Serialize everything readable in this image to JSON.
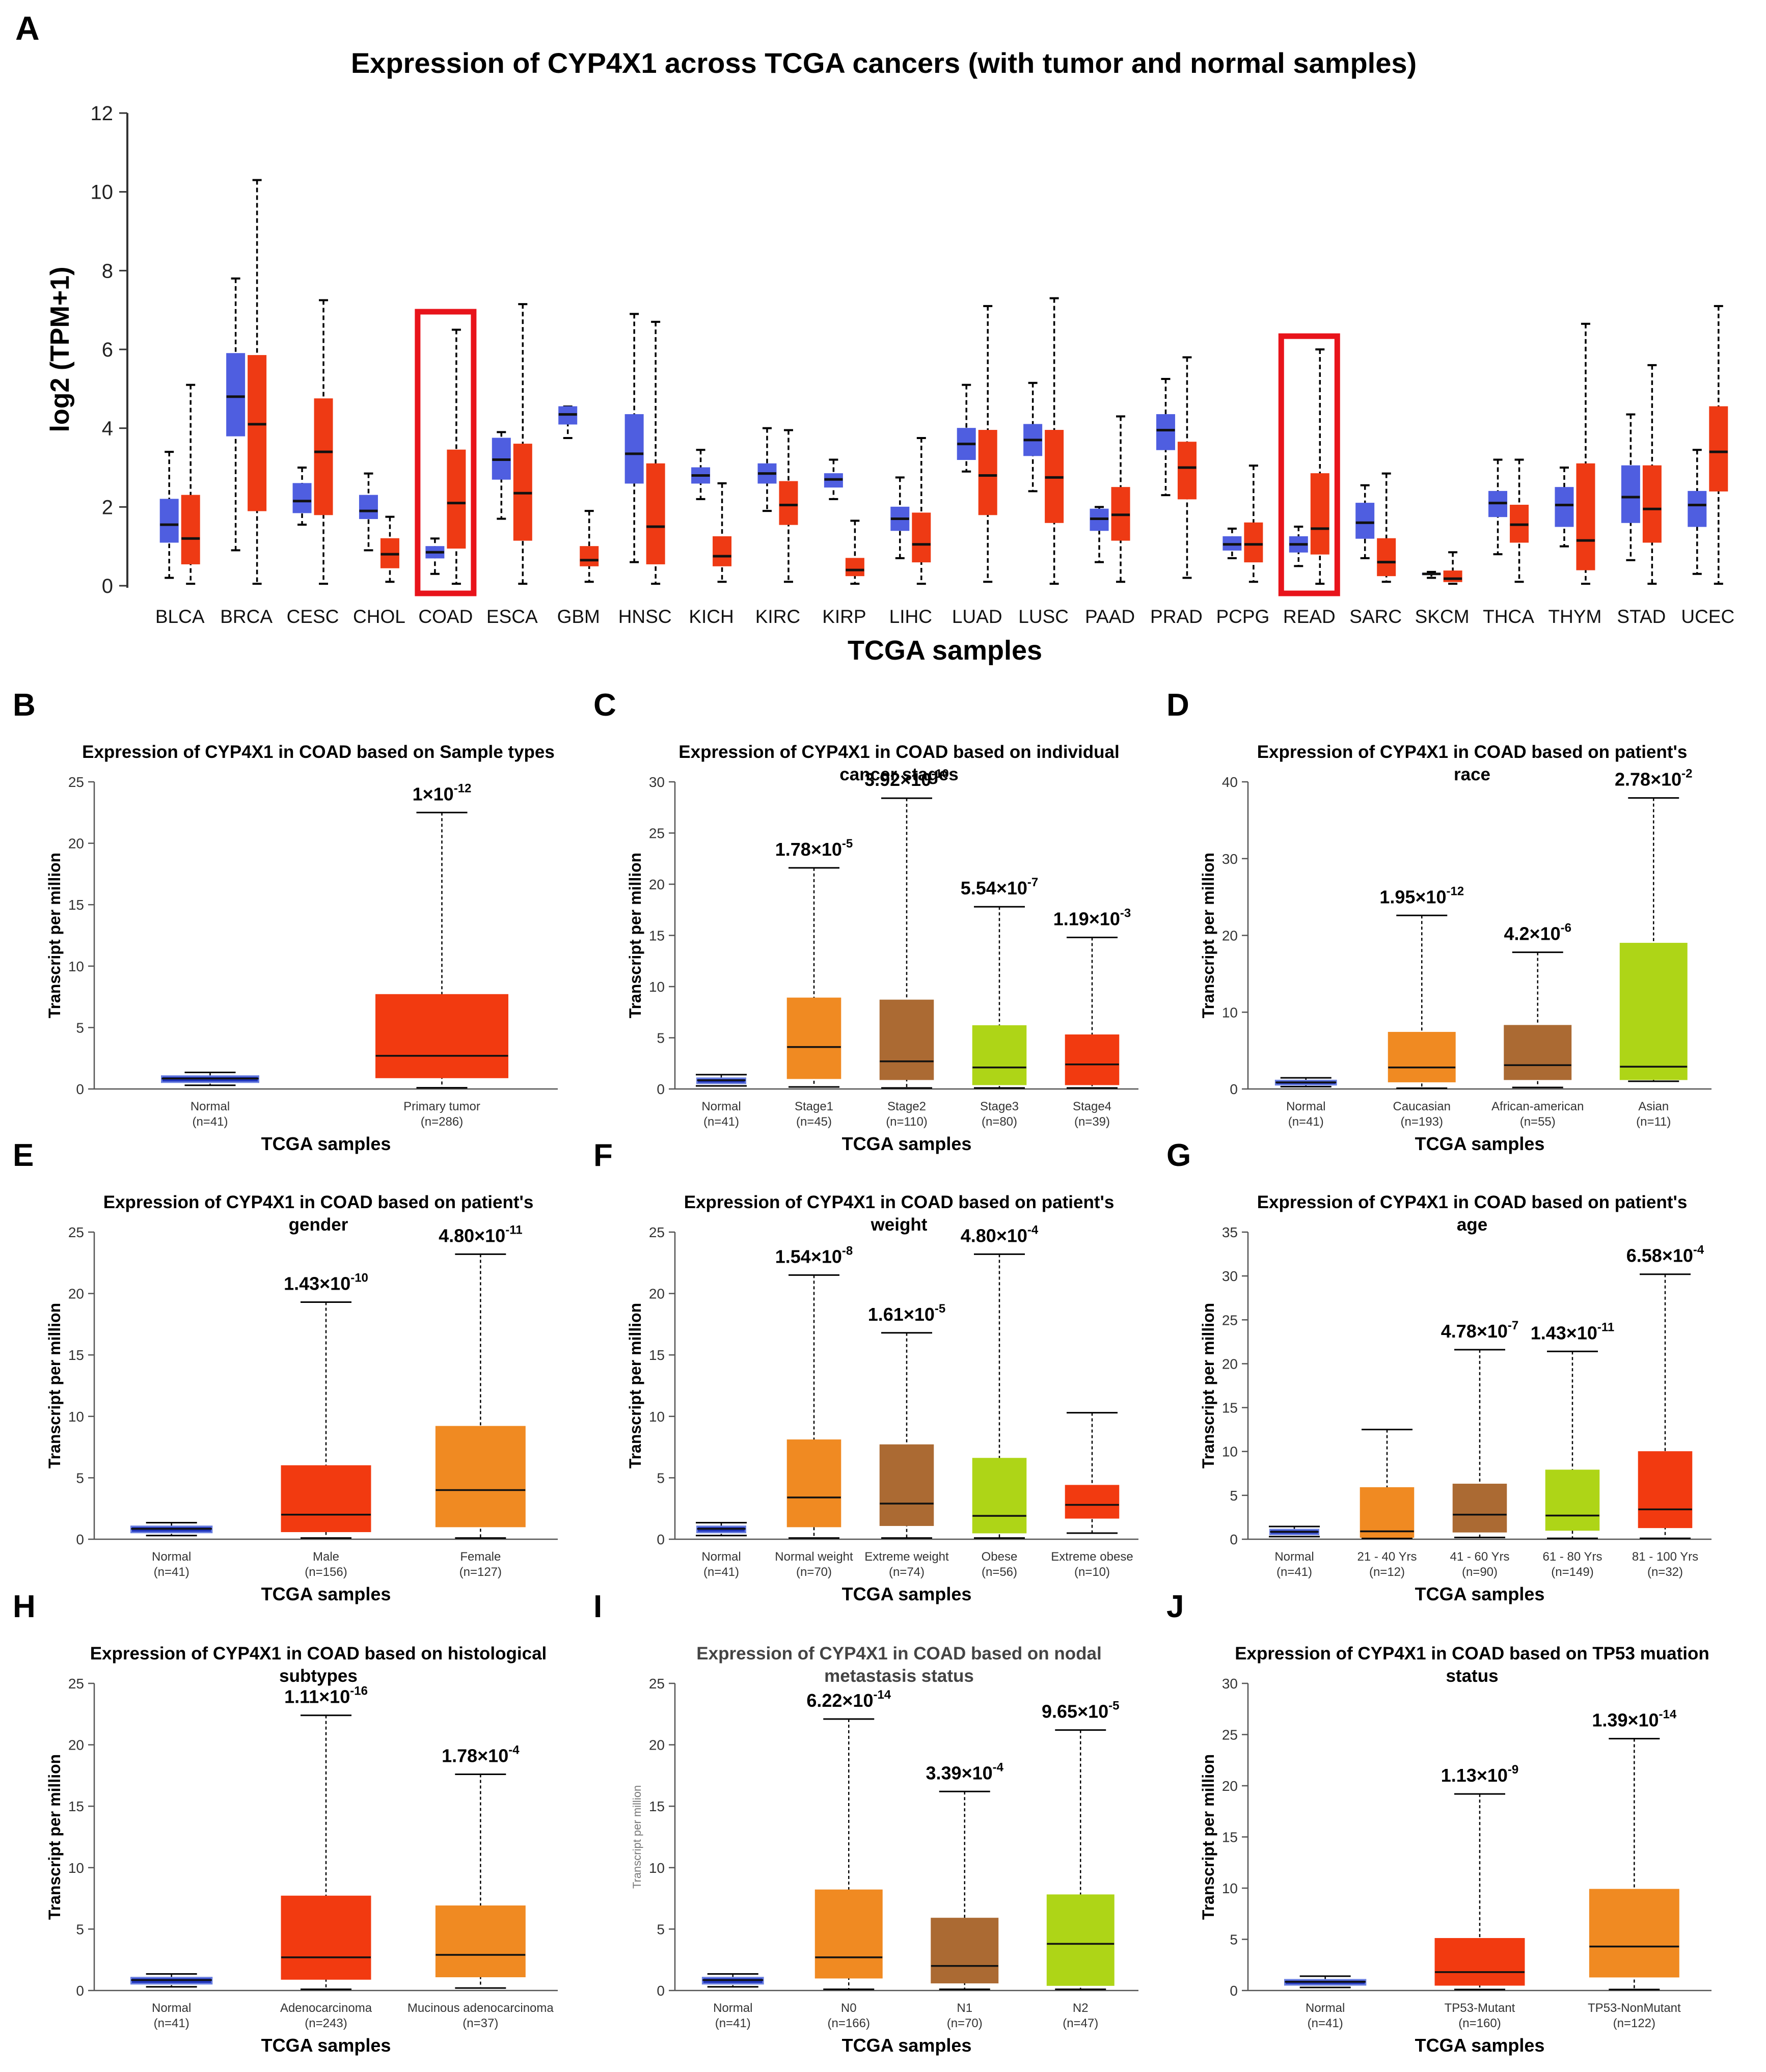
{
  "chart_data": [
    {
      "panel": "A",
      "type": "boxplot",
      "title": "Expression of CYP4X1 across TCGA cancers (with tumor and normal samples)",
      "xlabel": "TCGA samples",
      "ylabel": "log2 (TPM+1)",
      "ylim": [
        0,
        12
      ],
      "yticks": [
        "0",
        "2",
        "4",
        "6",
        "8",
        "10",
        "12"
      ],
      "colors": {
        "normal": "#4f5ee0",
        "tumor": "#ee3a14",
        "highlight": "#e8141b"
      },
      "highlighted": [
        "COAD",
        "READ"
      ],
      "categories": [
        "BLCA",
        "BRCA",
        "CESC",
        "CHOL",
        "COAD",
        "ESCA",
        "GBM",
        "HNSC",
        "KICH",
        "KIRC",
        "KIRP",
        "LIHC",
        "LUAD",
        "LUSC",
        "PAAD",
        "PRAD",
        "PCPG",
        "READ",
        "SARC",
        "SKCM",
        "THCA",
        "THYM",
        "STAD",
        "UCEC"
      ],
      "normal": [
        [
          0.2,
          1.1,
          1.55,
          2.2,
          3.4
        ],
        [
          0.9,
          3.8,
          4.8,
          5.9,
          7.8
        ],
        [
          1.55,
          1.85,
          2.15,
          2.6,
          3.0
        ],
        [
          0.9,
          1.7,
          1.9,
          2.3,
          2.85
        ],
        [
          0.3,
          0.7,
          0.85,
          1.0,
          1.2
        ],
        [
          1.7,
          2.7,
          3.2,
          3.75,
          3.9
        ],
        [
          3.75,
          4.1,
          4.35,
          4.55,
          4.55
        ],
        [
          0.6,
          2.6,
          3.35,
          4.35,
          6.9
        ],
        [
          2.2,
          2.6,
          2.8,
          3.0,
          3.45
        ],
        [
          1.9,
          2.6,
          2.85,
          3.1,
          4.0
        ],
        [
          2.2,
          2.5,
          2.7,
          2.85,
          3.2
        ],
        [
          0.7,
          1.4,
          1.7,
          2.0,
          2.75
        ],
        [
          2.9,
          3.2,
          3.6,
          4.0,
          5.1
        ],
        [
          2.4,
          3.3,
          3.7,
          4.1,
          5.15
        ],
        [
          0.6,
          1.4,
          1.7,
          1.95,
          2.0
        ],
        [
          2.3,
          3.45,
          3.95,
          4.35,
          5.25
        ],
        [
          0.7,
          0.9,
          1.05,
          1.25,
          1.45
        ],
        [
          0.5,
          0.85,
          1.05,
          1.25,
          1.5
        ],
        [
          0.7,
          1.2,
          1.6,
          2.1,
          2.55
        ],
        [
          0.2,
          0.28,
          0.3,
          0.32,
          0.35
        ],
        [
          0.8,
          1.75,
          2.1,
          2.4,
          3.2
        ],
        [
          1.0,
          1.5,
          2.05,
          2.5,
          3.0
        ],
        [
          0.65,
          1.6,
          2.25,
          3.05,
          4.35
        ],
        [
          0.3,
          1.5,
          2.05,
          2.4,
          3.45
        ]
      ],
      "tumor": [
        [
          0.05,
          0.55,
          1.2,
          2.3,
          5.1
        ],
        [
          0.05,
          1.9,
          4.1,
          5.85,
          10.3
        ],
        [
          0.05,
          1.8,
          3.4,
          4.75,
          7.25
        ],
        [
          0.1,
          0.45,
          0.8,
          1.2,
          1.75
        ],
        [
          0.05,
          0.95,
          2.1,
          3.45,
          6.5
        ],
        [
          0.05,
          1.15,
          2.35,
          3.6,
          7.15
        ],
        [
          0.1,
          0.5,
          0.65,
          1.0,
          1.9
        ],
        [
          0.05,
          0.55,
          1.5,
          3.1,
          6.7
        ],
        [
          0.1,
          0.5,
          0.75,
          1.25,
          2.6
        ],
        [
          0.1,
          1.55,
          2.05,
          2.65,
          3.95
        ],
        [
          0.05,
          0.25,
          0.4,
          0.7,
          1.65
        ],
        [
          0.05,
          0.6,
          1.05,
          1.85,
          3.75
        ],
        [
          0.1,
          1.8,
          2.8,
          3.95,
          7.1
        ],
        [
          0.05,
          1.6,
          2.75,
          3.95,
          7.3
        ],
        [
          0.1,
          1.15,
          1.8,
          2.5,
          4.3
        ],
        [
          0.2,
          2.2,
          3.0,
          3.65,
          5.8
        ],
        [
          0.1,
          0.6,
          1.05,
          1.6,
          3.05
        ],
        [
          0.05,
          0.8,
          1.45,
          2.85,
          6.0
        ],
        [
          0.1,
          0.25,
          0.6,
          1.2,
          2.85
        ],
        [
          0.05,
          0.1,
          0.18,
          0.38,
          0.85
        ],
        [
          0.1,
          1.1,
          1.55,
          2.05,
          3.2
        ],
        [
          0.05,
          0.4,
          1.15,
          3.1,
          6.65
        ],
        [
          0.05,
          1.1,
          1.95,
          3.05,
          5.6
        ],
        [
          0.05,
          2.4,
          3.4,
          4.55,
          7.1
        ]
      ]
    },
    {
      "panel": "B",
      "type": "boxplot",
      "title": "Expression of CYP4X1 in COAD based on Sample types",
      "xlabel": "TCGA samples",
      "ylabel": "Transcript per million",
      "ylim": [
        0,
        25
      ],
      "yticks": [
        "0",
        "5",
        "10",
        "15",
        "20",
        "25"
      ],
      "groups": [
        {
          "label": "Normal",
          "n": "(n=41)",
          "color": "#2136bd",
          "stats": [
            0.3,
            0.55,
            0.85,
            1.05,
            1.35
          ]
        },
        {
          "label": "Primary tumor",
          "n": "(n=286)",
          "color": "#f23a10",
          "stats": [
            0.1,
            0.9,
            2.7,
            7.7,
            22.5
          ],
          "p_main": "1×10",
          "p_exp": "-12"
        }
      ]
    },
    {
      "panel": "C",
      "type": "boxplot",
      "title": "Expression of CYP4X1 in COAD based on individual cancer stages",
      "xlabel": "TCGA samples",
      "ylabel": "Transcript per million",
      "ylim": [
        0,
        30
      ],
      "yticks": [
        "0",
        "5",
        "10",
        "15",
        "20",
        "25",
        "30"
      ],
      "groups": [
        {
          "label": "Normal",
          "n": "(n=41)",
          "color": "#2136bd",
          "stats": [
            0.3,
            0.55,
            0.85,
            1.05,
            1.4
          ]
        },
        {
          "label": "Stage1",
          "n": "(n=45)",
          "color": "#f08a22",
          "stats": [
            0.2,
            1.0,
            4.1,
            8.9,
            21.6
          ],
          "p_main": "1.78×10",
          "p_exp": "-5"
        },
        {
          "label": "Stage2",
          "n": "(n=110)",
          "color": "#ab6a33",
          "stats": [
            0.1,
            0.9,
            2.7,
            8.7,
            28.4
          ],
          "p_main": "3.92×10",
          "p_exp": "-10"
        },
        {
          "label": "Stage3",
          "n": "(n=80)",
          "color": "#aed517",
          "stats": [
            0.1,
            0.4,
            2.1,
            6.2,
            17.8
          ],
          "p_main": "5.54×10",
          "p_exp": "-7"
        },
        {
          "label": "Stage4",
          "n": "(n=39)",
          "color": "#f23a10",
          "stats": [
            0.1,
            0.4,
            2.4,
            5.3,
            14.8
          ],
          "p_main": "1.19×10",
          "p_exp": "-3"
        }
      ]
    },
    {
      "panel": "D",
      "type": "boxplot",
      "title": "Expression of CYP4X1 in COAD based on patient's race",
      "xlabel": "TCGA samples",
      "ylabel": "Transcript per million",
      "ylim": [
        0,
        40
      ],
      "yticks": [
        "0",
        "10",
        "20",
        "30",
        "40"
      ],
      "groups": [
        {
          "label": "Normal",
          "n": "(n=41)",
          "color": "#2136bd",
          "stats": [
            0.3,
            0.55,
            0.85,
            1.1,
            1.45
          ]
        },
        {
          "label": "Caucasian",
          "n": "(n=193)",
          "color": "#f08a22",
          "stats": [
            0.1,
            0.9,
            2.8,
            7.4,
            22.6
          ],
          "p_main": "1.95×10",
          "p_exp": "-12"
        },
        {
          "label": "African-american",
          "n": "(n=55)",
          "color": "#ab6a33",
          "stats": [
            0.2,
            1.2,
            3.1,
            8.3,
            17.8
          ],
          "p_main": "4.2×10",
          "p_exp": "-6"
        },
        {
          "label": "Asian",
          "n": "(n=11)",
          "color": "#aed517",
          "stats": [
            1.0,
            1.2,
            2.9,
            19.0,
            37.9
          ],
          "p_main": "2.78×10",
          "p_exp": "-2"
        }
      ]
    },
    {
      "panel": "E",
      "type": "boxplot",
      "title": "Expression of CYP4X1 in COAD based on patient's gender",
      "xlabel": "TCGA samples",
      "ylabel": "Transcript per million",
      "ylim": [
        0,
        25
      ],
      "yticks": [
        "0",
        "5",
        "10",
        "15",
        "20",
        "25"
      ],
      "groups": [
        {
          "label": "Normal",
          "n": "(n=41)",
          "color": "#2136bd",
          "stats": [
            0.3,
            0.55,
            0.85,
            1.05,
            1.35
          ]
        },
        {
          "label": "Male",
          "n": "(n=156)",
          "color": "#f23a10",
          "stats": [
            0.1,
            0.6,
            2.0,
            6.0,
            19.3
          ],
          "p_main": "1.43×10",
          "p_exp": "-10"
        },
        {
          "label": "Female",
          "n": "(n=127)",
          "color": "#f08a22",
          "stats": [
            0.1,
            1.0,
            4.0,
            9.2,
            23.2
          ],
          "p_main": "4.80×10",
          "p_exp": "-11"
        }
      ]
    },
    {
      "panel": "F",
      "type": "boxplot",
      "title": "Expression of CYP4X1 in COAD based on patient's weight",
      "xlabel": "TCGA samples",
      "ylabel": "Transcript per million",
      "ylim": [
        0,
        25
      ],
      "yticks": [
        "0",
        "5",
        "10",
        "15",
        "20",
        "25"
      ],
      "groups": [
        {
          "label": "Normal",
          "n": "(n=41)",
          "color": "#2136bd",
          "stats": [
            0.3,
            0.55,
            0.85,
            1.05,
            1.35
          ]
        },
        {
          "label": "Normal weight",
          "n": "(n=70)",
          "color": "#f08a22",
          "stats": [
            0.1,
            1.0,
            3.4,
            8.1,
            21.5
          ],
          "p_main": "1.54×10",
          "p_exp": "-8"
        },
        {
          "label": "Extreme weight",
          "n": "(n=74)",
          "color": "#ab6a33",
          "stats": [
            0.1,
            1.1,
            2.9,
            7.7,
            16.8
          ],
          "p_main": "1.61×10",
          "p_exp": "-5"
        },
        {
          "label": "Obese",
          "n": "(n=56)",
          "color": "#aed517",
          "stats": [
            0.1,
            0.5,
            1.9,
            6.6,
            23.2
          ],
          "p_main": "4.80×10",
          "p_exp": "-4"
        },
        {
          "label": "Extreme obese",
          "n": "(n=10)",
          "color": "#f23a10",
          "stats": [
            0.5,
            1.7,
            2.8,
            4.4,
            10.3
          ]
        }
      ]
    },
    {
      "panel": "G",
      "type": "boxplot",
      "title": "Expression of CYP4X1 in COAD based on patient's age",
      "xlabel": "TCGA samples",
      "ylabel": "Transcript per million",
      "ylim": [
        0,
        35
      ],
      "yticks": [
        "0",
        "5",
        "10",
        "15",
        "20",
        "25",
        "30",
        "35"
      ],
      "groups": [
        {
          "label": "Normal",
          "n": "(n=41)",
          "color": "#2136bd",
          "stats": [
            0.3,
            0.55,
            0.85,
            1.1,
            1.45
          ]
        },
        {
          "label": "21 - 40 Yrs",
          "n": "(n=12)",
          "color": "#f08a22",
          "stats": [
            0.1,
            0.2,
            0.9,
            5.9,
            12.5
          ]
        },
        {
          "label": "41 - 60 Yrs",
          "n": "(n=90)",
          "color": "#ab6a33",
          "stats": [
            0.2,
            0.8,
            2.8,
            6.3,
            21.6
          ],
          "p_main": "4.78×10",
          "p_exp": "-7"
        },
        {
          "label": "61 - 80 Yrs",
          "n": "(n=149)",
          "color": "#aed517",
          "stats": [
            0.1,
            1.0,
            2.7,
            7.9,
            21.4
          ],
          "p_main": "1.43×10",
          "p_exp": "-11"
        },
        {
          "label": "81 - 100 Yrs",
          "n": "(n=32)",
          "color": "#f23a10",
          "stats": [
            0.1,
            1.3,
            3.4,
            10.0,
            30.2
          ],
          "p_main": "6.58×10",
          "p_exp": "-4"
        }
      ]
    },
    {
      "panel": "H",
      "type": "boxplot",
      "title": "Expression of CYP4X1 in COAD based on histological subtypes",
      "xlabel": "TCGA samples",
      "ylabel": "Transcript per million",
      "ylim": [
        0,
        25
      ],
      "yticks": [
        "0",
        "5",
        "10",
        "15",
        "20",
        "25"
      ],
      "groups": [
        {
          "label": "Normal",
          "n": "(n=41)",
          "color": "#2136bd",
          "stats": [
            0.3,
            0.55,
            0.85,
            1.05,
            1.35
          ]
        },
        {
          "label": "Adenocarcinoma",
          "n": "(n=243)",
          "color": "#f23a10",
          "stats": [
            0.1,
            0.9,
            2.7,
            7.7,
            22.4
          ],
          "p_main": "1.11×10",
          "p_exp": "-16"
        },
        {
          "label": "Mucinous adenocarcinoma",
          "n": "(n=37)",
          "color": "#f08a22",
          "stats": [
            0.2,
            1.1,
            2.9,
            6.9,
            17.6
          ],
          "p_main": "1.78×10",
          "p_exp": "-4"
        }
      ]
    },
    {
      "panel": "I",
      "type": "boxplot",
      "title": "Expression of CYP4X1 in COAD based on nodal metastasis status",
      "xlabel": "TCGA samples",
      "ylabel": "Transcript per million",
      "ylim": [
        0,
        25
      ],
      "yticks": [
        "0",
        "5",
        "10",
        "15",
        "20",
        "25"
      ],
      "groups": [
        {
          "label": "Normal",
          "n": "(n=41)",
          "color": "#2136bd",
          "stats": [
            0.3,
            0.55,
            0.85,
            1.05,
            1.35
          ]
        },
        {
          "label": "N0",
          "n": "(n=166)",
          "color": "#f08a22",
          "stats": [
            0.1,
            1.0,
            2.7,
            8.2,
            22.1
          ],
          "p_main": "6.22×10",
          "p_exp": "-14"
        },
        {
          "label": "N1",
          "n": "(n=70)",
          "color": "#ab6a33",
          "stats": [
            0.1,
            0.6,
            2.0,
            5.9,
            16.2
          ],
          "p_main": "3.39×10",
          "p_exp": "-4"
        },
        {
          "label": "N2",
          "n": "(n=47)",
          "color": "#aed517",
          "stats": [
            0.1,
            0.4,
            3.8,
            7.8,
            21.2
          ],
          "p_main": "9.65×10",
          "p_exp": "-5"
        }
      ]
    },
    {
      "panel": "J",
      "type": "boxplot",
      "title": "Expression of CYP4X1 in COAD based on TP53 muation status",
      "xlabel": "TCGA samples",
      "ylabel": "Transcript per million",
      "ylim": [
        0,
        30
      ],
      "yticks": [
        "0",
        "5",
        "10",
        "15",
        "20",
        "25",
        "30"
      ],
      "groups": [
        {
          "label": "Normal",
          "n": "(n=41)",
          "color": "#2136bd",
          "stats": [
            0.3,
            0.55,
            0.85,
            1.05,
            1.4
          ]
        },
        {
          "label": "TP53-Mutant",
          "n": "(n=160)",
          "color": "#f23a10",
          "stats": [
            0.1,
            0.5,
            1.8,
            5.1,
            19.2
          ],
          "p_main": "1.13×10",
          "p_exp": "-9"
        },
        {
          "label": "TP53-NonMutant",
          "n": "(n=122)",
          "color": "#f08a22",
          "stats": [
            0.1,
            1.3,
            4.3,
            9.9,
            24.6
          ],
          "p_main": "1.39×10",
          "p_exp": "-14"
        }
      ]
    }
  ]
}
